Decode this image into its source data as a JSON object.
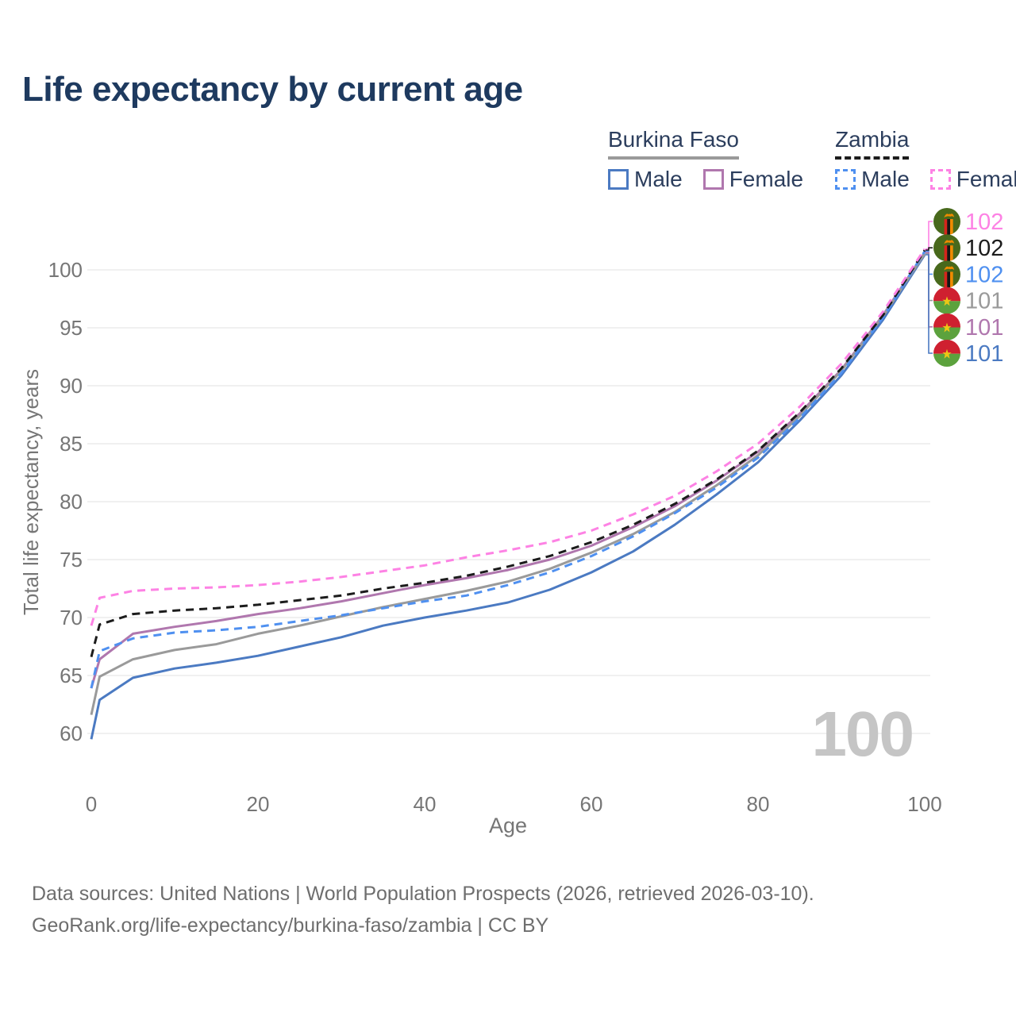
{
  "title": "Life expectancy by current age",
  "watermark": "100",
  "legend": {
    "groups": [
      {
        "label": "Burkina Faso",
        "line_style": "solid",
        "color": "#9a9a9a",
        "items": [
          {
            "label": "Male",
            "color": "#4b7ac2",
            "dashed": false
          },
          {
            "label": "Female",
            "color": "#b077ae",
            "dashed": false
          }
        ]
      },
      {
        "label": "Zambia",
        "line_style": "dashed",
        "color": "#1c1c1c",
        "items": [
          {
            "label": "Male",
            "color": "#4f90f0",
            "dashed": true
          },
          {
            "label": "Female",
            "color": "#fd82e4",
            "dashed": true
          }
        ]
      }
    ]
  },
  "footer": {
    "line1": "Data sources: United Nations | World Population Prospects (2026, retrieved 2026-03-10).",
    "line2": "GeoRank.org/life-expectancy/burkina-faso/zambia | CC BY"
  },
  "chart_data": {
    "type": "line",
    "xlabel": "Age",
    "ylabel": "Total life expectancy, years",
    "xlim": [
      0,
      100
    ],
    "ylim": [
      58,
      103
    ],
    "xticks": [
      0,
      20,
      40,
      60,
      80,
      100
    ],
    "yticks": [
      60,
      65,
      70,
      75,
      80,
      85,
      90,
      95,
      100
    ],
    "grid": "horizontal",
    "grid_color": "#ececec",
    "axis_text_color": "#767676",
    "watermark_color": "#c5c5c5",
    "x": [
      0,
      1,
      5,
      10,
      15,
      20,
      25,
      30,
      35,
      40,
      45,
      50,
      55,
      60,
      65,
      70,
      75,
      80,
      85,
      90,
      95,
      100
    ],
    "series": [
      {
        "name": "Zambia Female",
        "country": "zambia",
        "color": "#fd82e4",
        "dashed": true,
        "end_label": "102",
        "values": [
          69.3,
          71.7,
          72.3,
          72.5,
          72.6,
          72.8,
          73.1,
          73.5,
          74.0,
          74.5,
          75.2,
          75.8,
          76.5,
          77.5,
          78.9,
          80.5,
          82.6,
          85.0,
          88.2,
          91.9,
          96.4,
          101.8
        ]
      },
      {
        "name": "Zambia (both sexes)",
        "country": "zambia",
        "color": "#1c1c1c",
        "dashed": true,
        "end_label": "102",
        "values": [
          66.6,
          69.4,
          70.3,
          70.6,
          70.8,
          71.1,
          71.5,
          71.9,
          72.5,
          73.0,
          73.6,
          74.4,
          75.3,
          76.5,
          78.0,
          79.8,
          81.9,
          84.4,
          87.7,
          91.5,
          96.1,
          101.7
        ]
      },
      {
        "name": "Zambia Male",
        "country": "zambia",
        "color": "#4f90f0",
        "dashed": true,
        "end_label": "102",
        "values": [
          63.9,
          67.1,
          68.2,
          68.7,
          68.9,
          69.2,
          69.7,
          70.2,
          70.8,
          71.4,
          71.9,
          72.8,
          73.9,
          75.3,
          77.0,
          79.0,
          81.2,
          83.8,
          87.2,
          91.1,
          95.9,
          101.6
        ]
      },
      {
        "name": "Burkina Faso (both sexes)",
        "country": "burkina-faso",
        "color": "#9a9a9a",
        "dashed": false,
        "end_label": "101",
        "values": [
          61.6,
          64.9,
          66.4,
          67.2,
          67.7,
          68.6,
          69.3,
          70.1,
          70.9,
          71.6,
          72.3,
          73.1,
          74.2,
          75.6,
          77.2,
          79.1,
          81.4,
          84.0,
          87.4,
          91.3,
          96.0,
          101.4
        ]
      },
      {
        "name": "Burkina Faso Female",
        "country": "burkina-faso",
        "color": "#b077ae",
        "dashed": false,
        "end_label": "101",
        "values": [
          63.9,
          66.4,
          68.6,
          69.2,
          69.7,
          70.3,
          70.8,
          71.4,
          72.1,
          72.8,
          73.4,
          74.1,
          75.0,
          76.2,
          77.8,
          79.6,
          81.8,
          84.3,
          87.6,
          91.4,
          96.1,
          101.5
        ]
      },
      {
        "name": "Burkina Faso Male",
        "country": "burkina-faso",
        "color": "#4b7ac2",
        "dashed": false,
        "end_label": "101",
        "values": [
          59.5,
          62.9,
          64.8,
          65.6,
          66.1,
          66.7,
          67.5,
          68.3,
          69.3,
          70.0,
          70.6,
          71.3,
          72.4,
          73.9,
          75.7,
          78.0,
          80.6,
          83.4,
          87.0,
          90.9,
          95.7,
          101.3
        ]
      }
    ]
  }
}
